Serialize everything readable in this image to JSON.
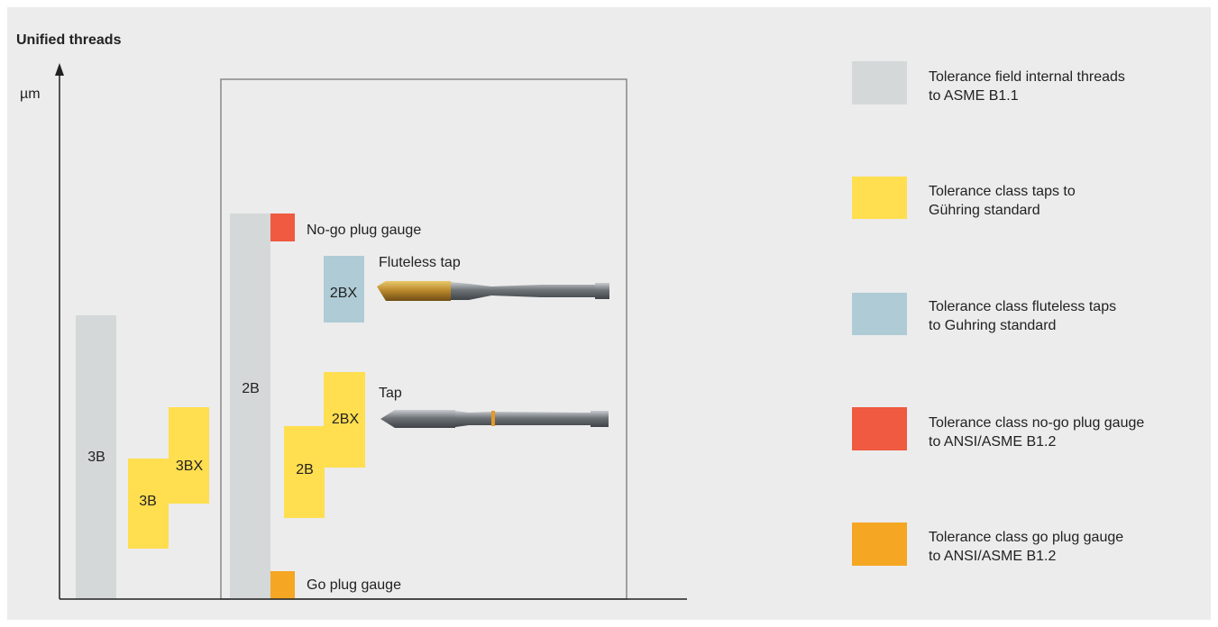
{
  "title": "Unified threads",
  "axis_label": "µm",
  "fields": [
    {
      "label": "3B"
    },
    {
      "label": "3B"
    },
    {
      "label": "3BX"
    },
    {
      "label": "2B"
    },
    {
      "label": "2BX"
    },
    {
      "label": "2BX"
    },
    {
      "label": "2B"
    }
  ],
  "callouts": [
    "No-go plug gauge",
    "Fluteless tap",
    "Tap",
    "Go plug gauge"
  ],
  "legend": [
    {
      "lines": [
        "Tolerance field internal threads",
        "to ASME B1.1"
      ]
    },
    {
      "lines": [
        "Tolerance class taps to",
        "Gühring standard"
      ]
    },
    {
      "lines": [
        "Tolerance class fluteless taps",
        "to Guhring standard"
      ]
    },
    {
      "lines": [
        "Tolerance class no-go plug gauge",
        "to ANSI/ASME B1.2"
      ]
    },
    {
      "lines": [
        "Tolerance class go plug gauge",
        "to ANSI/ASME B1.2"
      ]
    }
  ]
}
